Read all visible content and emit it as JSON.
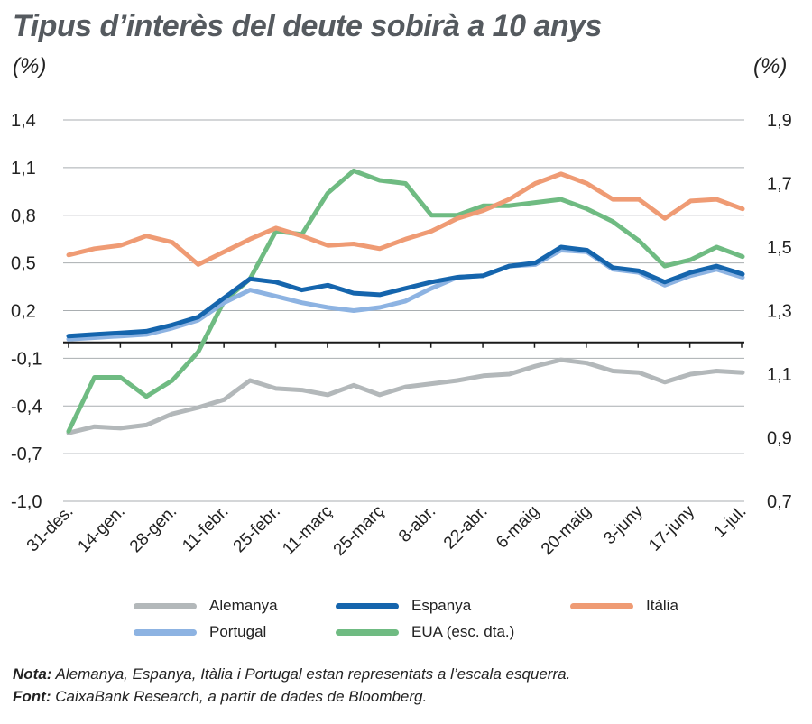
{
  "chart_data": {
    "type": "line",
    "title": "Tipus d’interès del deute sobirà a 10 anys",
    "ylabel_left": "(%)",
    "ylabel_right": "(%)",
    "y_left_ticks": [
      "1,4",
      "1,1",
      "0,8",
      "0,5",
      "0,2",
      "-0,1",
      "-0,4",
      "-0,7",
      "-1,0"
    ],
    "y_right_ticks": [
      "1,9",
      "1,7",
      "1,5",
      "1,3",
      "1,1",
      "0,9",
      "0,7"
    ],
    "y_left_range": [
      -1.0,
      1.4
    ],
    "y_right_range": [
      0.7,
      1.9
    ],
    "x_ticks": [
      "31-des.",
      "14-gen.",
      "28-gen.",
      "11-febr.",
      "25-febr.",
      "11-març",
      "25-març",
      "8-abr.",
      "22-abr.",
      "6-maig",
      "20-maig",
      "3-juny",
      "17-juny",
      "1-jul."
    ],
    "series": [
      {
        "name": "Alemanya",
        "axis": "left",
        "color": "#b3b8ba",
        "values": [
          -0.57,
          -0.53,
          -0.54,
          -0.52,
          -0.45,
          -0.41,
          -0.36,
          -0.24,
          -0.29,
          -0.3,
          -0.33,
          -0.27,
          -0.33,
          -0.28,
          -0.26,
          -0.24,
          -0.21,
          -0.2,
          -0.15,
          -0.11,
          -0.13,
          -0.18,
          -0.19,
          -0.25,
          -0.2,
          -0.18,
          -0.19
        ]
      },
      {
        "name": "Espanya",
        "axis": "left",
        "color": "#1565ad",
        "values": [
          0.04,
          0.05,
          0.06,
          0.07,
          0.11,
          0.16,
          0.28,
          0.4,
          0.38,
          0.33,
          0.36,
          0.31,
          0.3,
          0.34,
          0.38,
          0.41,
          0.42,
          0.48,
          0.5,
          0.6,
          0.58,
          0.47,
          0.45,
          0.38,
          0.44,
          0.48,
          0.43
        ]
      },
      {
        "name": "Itàlia",
        "axis": "left",
        "color": "#ef9b74",
        "values": [
          0.55,
          0.59,
          0.61,
          0.67,
          0.63,
          0.49,
          0.57,
          0.65,
          0.72,
          0.67,
          0.61,
          0.62,
          0.59,
          0.65,
          0.7,
          0.78,
          0.83,
          0.9,
          1.0,
          1.06,
          1.0,
          0.9,
          0.9,
          0.78,
          0.89,
          0.9,
          0.84
        ]
      },
      {
        "name": "Portugal",
        "axis": "left",
        "color": "#8db3e2",
        "values": [
          0.02,
          0.03,
          0.04,
          0.05,
          0.09,
          0.14,
          0.25,
          0.33,
          0.29,
          0.25,
          0.22,
          0.2,
          0.22,
          0.26,
          0.34,
          0.41,
          0.42,
          0.48,
          0.49,
          0.58,
          0.57,
          0.46,
          0.44,
          0.36,
          0.42,
          0.46,
          0.41
        ]
      },
      {
        "name": "EUA (esc. dta.)",
        "axis": "right",
        "color": "#6fbb82",
        "values": [
          0.92,
          1.09,
          1.09,
          1.03,
          1.08,
          1.17,
          1.33,
          1.4,
          1.55,
          1.54,
          1.67,
          1.74,
          1.71,
          1.7,
          1.6,
          1.6,
          1.63,
          1.63,
          1.64,
          1.65,
          1.62,
          1.58,
          1.52,
          1.44,
          1.46,
          1.5,
          1.47
        ]
      }
    ]
  },
  "legend": {
    "alemanya": "Alemanya",
    "espanya": "Espanya",
    "italia": "Itàlia",
    "portugal": "Portugal",
    "eua": "EUA (esc. dta.)"
  },
  "footer": {
    "note_label": "Nota:",
    "note_text": "Alemanya, Espanya, Itàlia i Portugal estan representats a l’escala esquerra.",
    "source_label": "Font:",
    "source_text": "CaixaBank Research, a partir de dades de Bloomberg."
  },
  "colors": {
    "alemanya": "#b3b8ba",
    "espanya": "#1565ad",
    "italia": "#ef9b74",
    "portugal": "#8db3e2",
    "eua": "#6fbb82"
  }
}
